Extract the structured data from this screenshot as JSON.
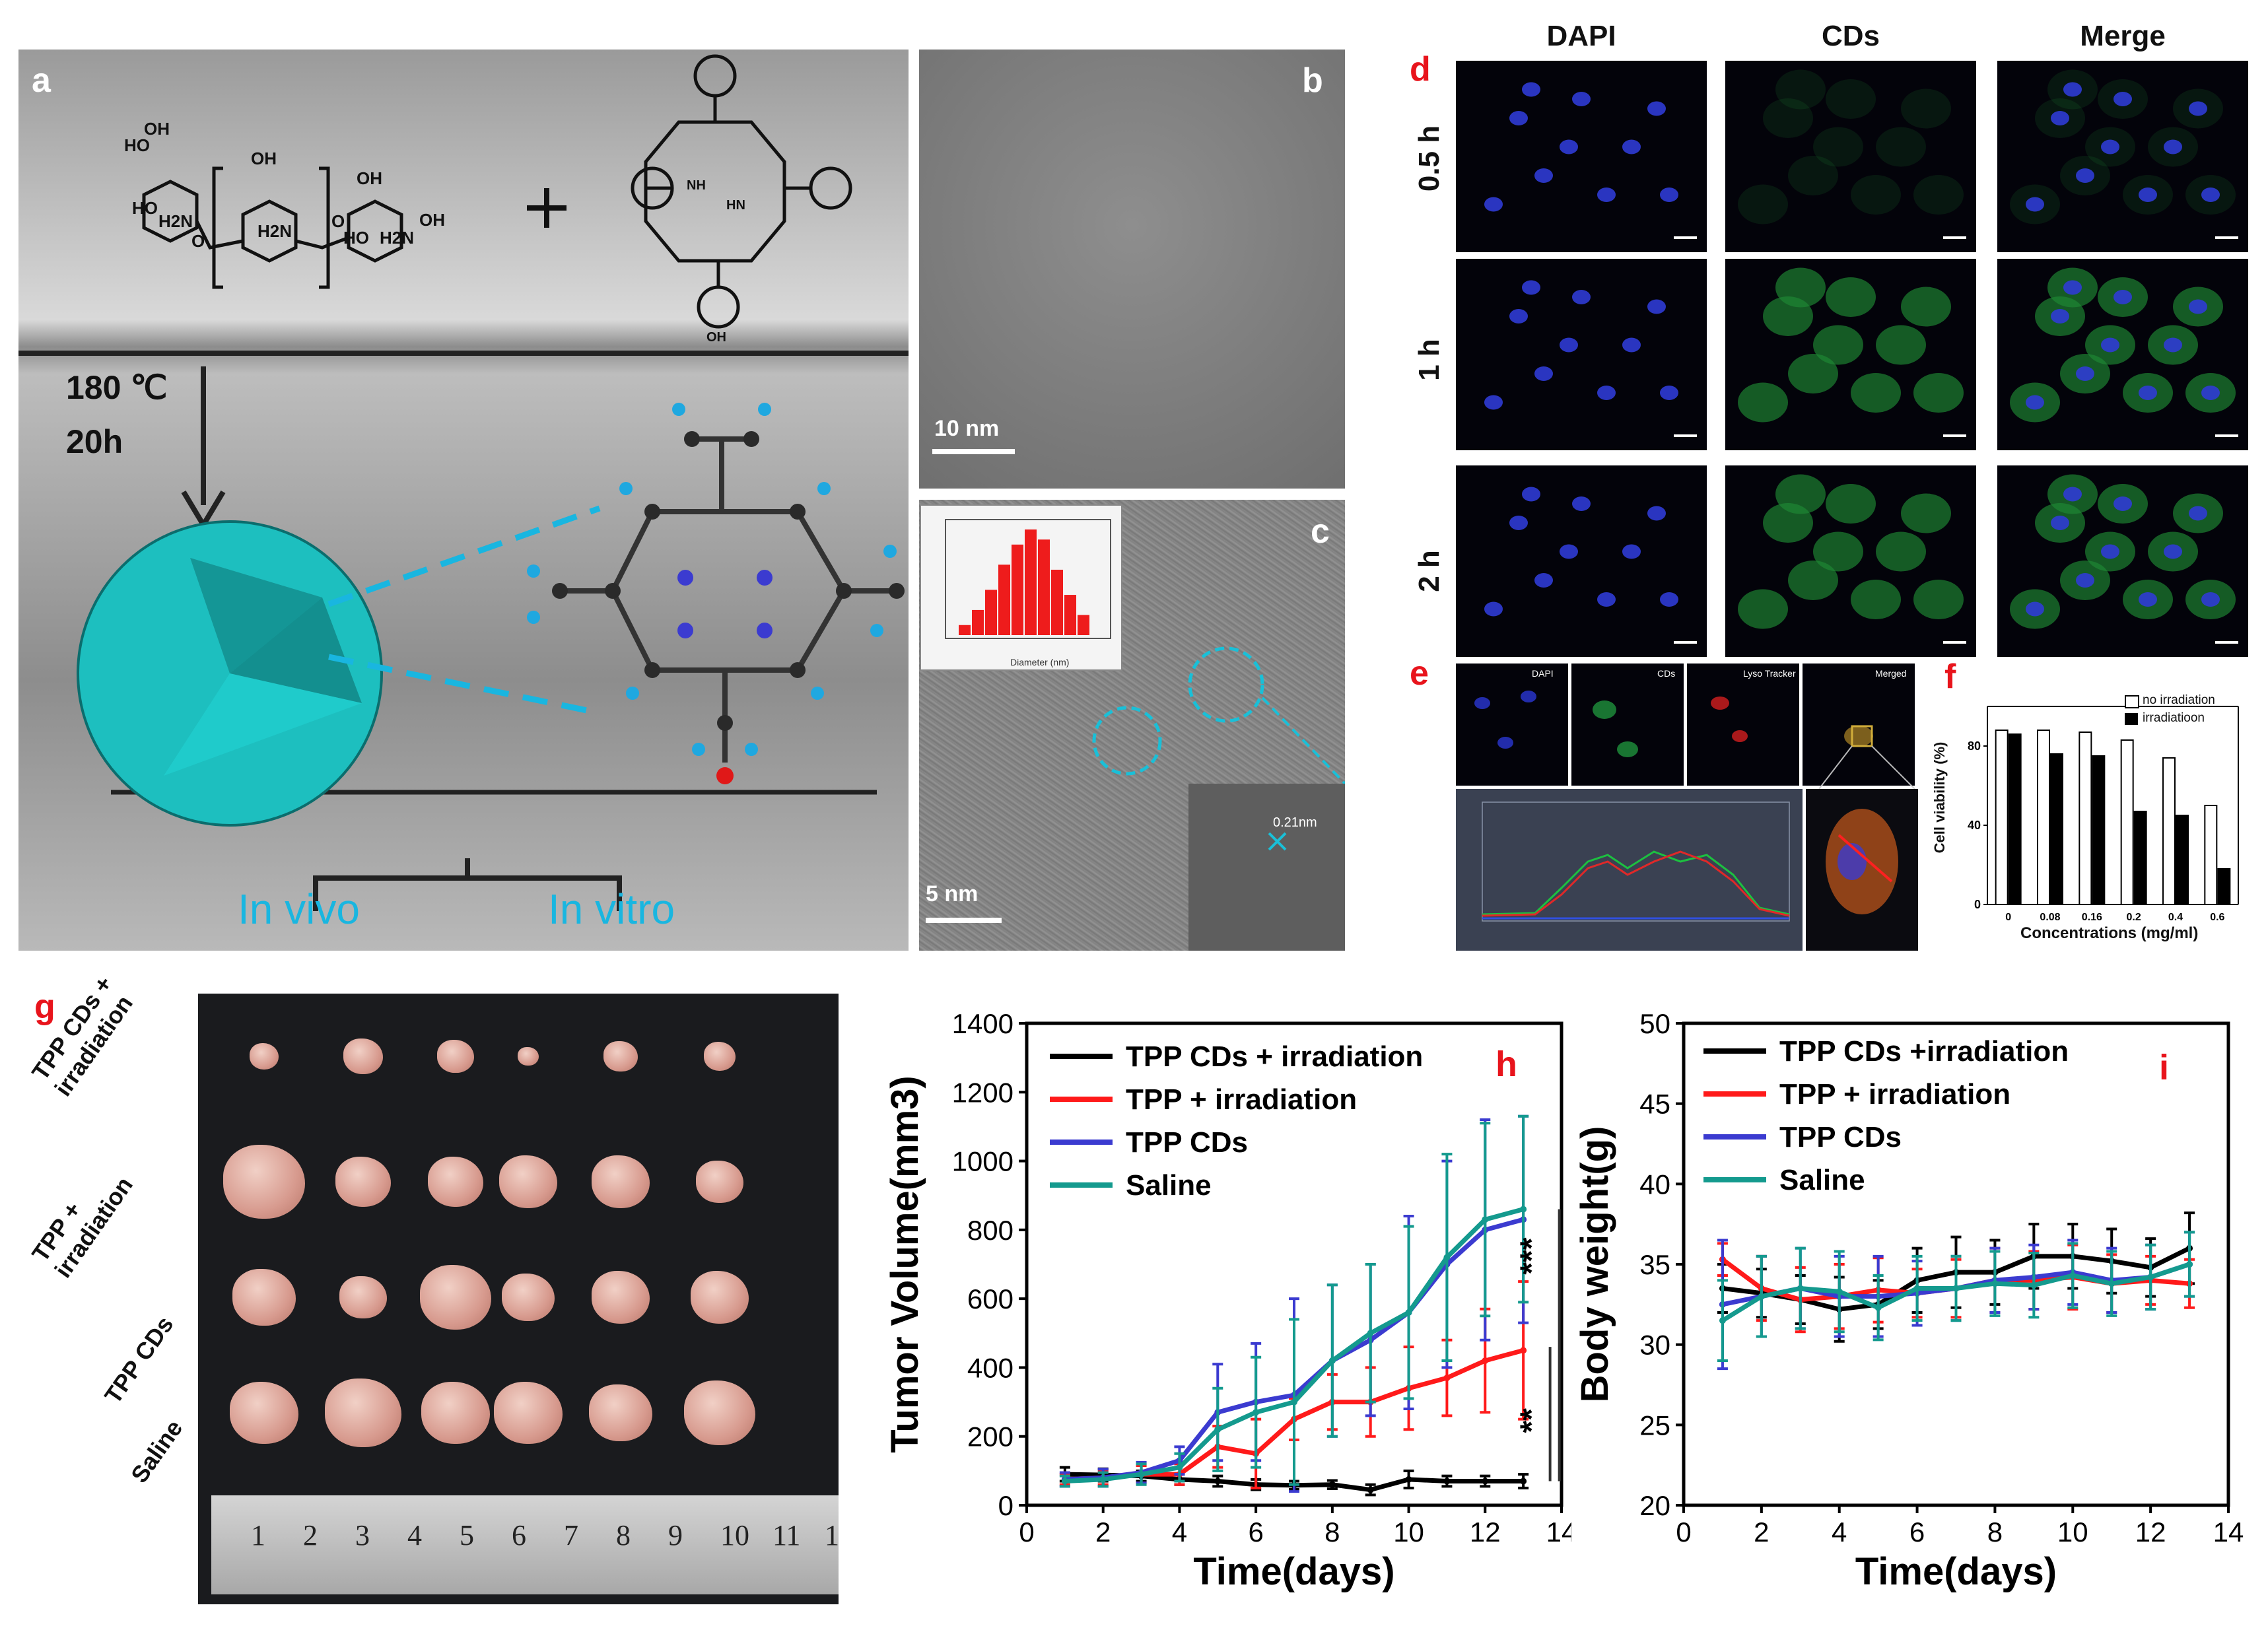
{
  "panels": {
    "a": {
      "label": "a",
      "conditions_temp": "180 ℃",
      "conditions_time": "20h",
      "in_vivo": "In vivo",
      "in_vitro": "In vitro",
      "chitosan_labels": {
        "ho1": "HO",
        "oh1": "OH",
        "ho2": "HO",
        "nh2_1": "H2N",
        "oh2": "OH",
        "nh2_2": "H2N",
        "oh3": "OH",
        "ho3": "HO",
        "nh2_3": "H2N",
        "oh4": "OH",
        "o1": "O",
        "o2": "O"
      },
      "porphyrin_labels": {
        "nh1": "NH",
        "hn": "HN",
        "oh": "OH"
      }
    },
    "b": {
      "label": "b",
      "scale": "10 nm"
    },
    "c": {
      "label": "c",
      "scale": "5 nm",
      "inset_xlabel": "Diameter (nm)",
      "lattice": "0.21nm",
      "histogram": [
        2,
        5,
        9,
        14,
        18,
        21,
        19,
        13,
        8,
        4
      ]
    },
    "d": {
      "label": "d",
      "col_titles": [
        "DAPI",
        "CDs",
        "Merge"
      ],
      "row_titles": [
        "0.5 h",
        "1 h",
        "2 h"
      ]
    },
    "e": {
      "label": "e",
      "subtitles": [
        "DAPI",
        "CDs",
        "Lyso Tracker",
        "Merged"
      ]
    },
    "f": {
      "label": "f",
      "ylabel": "Cell viability (%)",
      "xlabel": "Concentrations (mg/ml)",
      "legend": [
        "no irradiation",
        "irradiatioon"
      ],
      "ytick_labels": [
        "0",
        "40",
        "80"
      ]
    },
    "g": {
      "label": "g",
      "row_labels": [
        "TPP CDs + irradiation",
        "TPP + irradiation",
        "TPP CDs",
        "Saline"
      ],
      "ruler_numbers": [
        "1",
        "2",
        "3",
        "4",
        "5",
        "6",
        "7",
        "8",
        "9",
        "10",
        "11",
        "1"
      ]
    }
  },
  "chart_data": [
    {
      "id": "f",
      "type": "bar",
      "title": "",
      "xlabel": "Concentrations (mg/ml)",
      "ylabel": "Cell viability (%)",
      "categories": [
        "0",
        "0.08",
        "0.16",
        "0.2",
        "0.4",
        "0.6"
      ],
      "ylim": [
        0,
        100
      ],
      "series": [
        {
          "name": "no irradiation",
          "values": [
            88,
            88,
            87,
            83,
            74,
            50
          ]
        },
        {
          "name": "irradiatioon",
          "values": [
            86,
            76,
            75,
            47,
            45,
            18
          ]
        }
      ]
    },
    {
      "id": "h",
      "type": "line",
      "panel_label": "h",
      "xlabel": "Time(days)",
      "ylabel": "Tumor Volume(mm3)",
      "xlim": [
        0,
        14
      ],
      "ylim": [
        0,
        1400
      ],
      "xticks": [
        0,
        2,
        4,
        6,
        8,
        10,
        12,
        14
      ],
      "yticks": [
        0,
        200,
        400,
        600,
        800,
        1000,
        1200,
        1400
      ],
      "significance": [
        "**",
        "***"
      ],
      "x": [
        1,
        2,
        3,
        4,
        5,
        6,
        7,
        8,
        9,
        10,
        11,
        12,
        13
      ],
      "series": [
        {
          "name": "TPP CDs + irradiation",
          "color": "#000000",
          "values": [
            90,
            88,
            85,
            75,
            70,
            60,
            58,
            60,
            45,
            75,
            70,
            70,
            70
          ],
          "err": [
            20,
            18,
            15,
            15,
            15,
            15,
            12,
            12,
            15,
            25,
            15,
            15,
            20
          ]
        },
        {
          "name": "TPP + irradiation",
          "color": "#ff1a1a",
          "values": [
            75,
            80,
            90,
            90,
            170,
            150,
            250,
            300,
            300,
            340,
            370,
            420,
            450
          ],
          "err": [
            15,
            20,
            25,
            30,
            60,
            100,
            60,
            80,
            100,
            120,
            110,
            150,
            200
          ]
        },
        {
          "name": "TPP CDs",
          "color": "#3b3bd0",
          "values": [
            75,
            80,
            95,
            130,
            270,
            300,
            320,
            420,
            480,
            560,
            700,
            800,
            830
          ],
          "err": [
            20,
            25,
            30,
            40,
            140,
            170,
            280,
            220,
            220,
            280,
            300,
            320,
            300
          ]
        },
        {
          "name": "Saline",
          "color": "#149a8e",
          "values": [
            70,
            75,
            90,
            110,
            220,
            270,
            300,
            420,
            500,
            560,
            720,
            830,
            860
          ],
          "err": [
            15,
            20,
            30,
            40,
            120,
            160,
            240,
            220,
            200,
            250,
            300,
            280,
            270
          ]
        }
      ]
    },
    {
      "id": "i",
      "type": "line",
      "panel_label": "i",
      "xlabel": "Time(days)",
      "ylabel": "Body weight(g)",
      "xlim": [
        0,
        14
      ],
      "ylim": [
        20,
        50
      ],
      "xticks": [
        0,
        2,
        4,
        6,
        8,
        10,
        12,
        14
      ],
      "yticks": [
        20,
        25,
        30,
        35,
        40,
        45,
        50
      ],
      "x": [
        1,
        2,
        3,
        4,
        5,
        6,
        7,
        8,
        9,
        10,
        11,
        12,
        13
      ],
      "series": [
        {
          "name": "TPP CDs +irradiation",
          "color": "#000000",
          "values": [
            33.5,
            33.2,
            32.8,
            32.2,
            32.5,
            34.0,
            34.5,
            34.5,
            35.5,
            35.5,
            35.2,
            34.8,
            36.0
          ],
          "err": [
            1.5,
            1.5,
            1.5,
            2.0,
            1.5,
            2.0,
            2.2,
            2.0,
            2.0,
            2.0,
            2.0,
            1.8,
            2.2
          ]
        },
        {
          "name": "TPP + irradiation",
          "color": "#ff1a1a",
          "values": [
            35.3,
            33.5,
            32.8,
            33.0,
            33.4,
            33.2,
            33.5,
            34.0,
            34.0,
            34.2,
            33.8,
            34.0,
            33.8
          ],
          "err": [
            1.0,
            2.0,
            2.0,
            2.0,
            2.0,
            1.5,
            1.8,
            2.0,
            1.8,
            2.0,
            1.8,
            1.5,
            1.5
          ]
        },
        {
          "name": "TPP CDs",
          "color": "#3b3bd0",
          "values": [
            32.5,
            33.0,
            33.5,
            33.0,
            33.0,
            33.2,
            33.5,
            34.0,
            34.2,
            34.5,
            34.0,
            34.2,
            35.0
          ],
          "err": [
            4.0,
            2.5,
            2.5,
            2.5,
            2.5,
            2.0,
            2.0,
            2.0,
            2.0,
            2.0,
            2.0,
            2.0,
            2.0
          ]
        },
        {
          "name": "Saline",
          "color": "#149a8e",
          "values": [
            31.5,
            33.0,
            33.5,
            33.3,
            32.3,
            33.5,
            33.5,
            33.8,
            33.7,
            34.3,
            33.8,
            34.2,
            35.0
          ],
          "err": [
            2.5,
            2.5,
            2.5,
            2.5,
            2.0,
            2.0,
            2.0,
            2.0,
            2.0,
            2.0,
            2.0,
            2.0,
            2.0
          ]
        }
      ]
    }
  ]
}
